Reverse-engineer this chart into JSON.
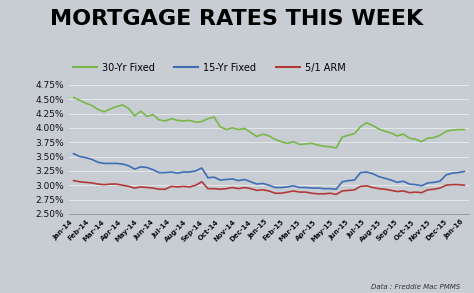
{
  "title": "MORTGAGE RATES THIS WEEK",
  "title_fontsize": 16,
  "title_fontweight": "bold",
  "source_text": "Data : Freddie Mac PMMS",
  "x_labels": [
    "Jan-14",
    "Feb-14",
    "Mar-14",
    "Apr-14",
    "May-14",
    "Jun-14",
    "Jul-14",
    "Aug-14",
    "Sep-14",
    "Oct-14",
    "Nov-14",
    "Dec-14",
    "Jan-15",
    "Feb-15",
    "Mar-15",
    "Apr-15",
    "May-15",
    "Jun-15",
    "Jul-15",
    "Aug-15",
    "Sep-15",
    "Oct-15",
    "Nov-15",
    "Dec-15",
    "Jan-16"
  ],
  "ylim": [
    2.5,
    4.85
  ],
  "yticks": [
    2.5,
    2.75,
    3.0,
    3.25,
    3.5,
    3.75,
    4.0,
    4.25,
    4.5,
    4.75
  ],
  "line_30yr": [
    4.53,
    4.48,
    4.43,
    4.39,
    4.32,
    4.28,
    4.33,
    4.37,
    4.4,
    4.34,
    4.21,
    4.29,
    4.2,
    4.23,
    4.14,
    4.12,
    4.16,
    4.13,
    4.12,
    4.13,
    4.1,
    4.11,
    4.16,
    4.19,
    4.02,
    3.97,
    4.0,
    3.97,
    3.99,
    3.92,
    3.85,
    3.89,
    3.86,
    3.8,
    3.76,
    3.73,
    3.76,
    3.71,
    3.72,
    3.73,
    3.7,
    3.68,
    3.67,
    3.65,
    3.84,
    3.87,
    3.9,
    4.02,
    4.09,
    4.04,
    3.98,
    3.94,
    3.91,
    3.86,
    3.89,
    3.82,
    3.8,
    3.76,
    3.82,
    3.83,
    3.87,
    3.94,
    3.96,
    3.97,
    3.97
  ],
  "line_15yr": [
    3.55,
    3.5,
    3.48,
    3.45,
    3.4,
    3.38,
    3.38,
    3.38,
    3.37,
    3.34,
    3.28,
    3.32,
    3.31,
    3.27,
    3.22,
    3.22,
    3.23,
    3.21,
    3.23,
    3.23,
    3.25,
    3.3,
    3.13,
    3.14,
    3.09,
    3.1,
    3.11,
    3.08,
    3.1,
    3.06,
    3.02,
    3.03,
    3.0,
    2.96,
    2.96,
    2.97,
    2.99,
    2.96,
    2.96,
    2.95,
    2.95,
    2.94,
    2.94,
    2.93,
    3.06,
    3.08,
    3.09,
    3.22,
    3.23,
    3.2,
    3.15,
    3.12,
    3.09,
    3.05,
    3.07,
    3.02,
    3.01,
    2.99,
    3.04,
    3.05,
    3.07,
    3.18,
    3.21,
    3.22,
    3.24
  ],
  "line_arm": [
    3.08,
    3.06,
    3.05,
    3.04,
    3.02,
    3.01,
    3.02,
    3.02,
    3.0,
    2.98,
    2.95,
    2.97,
    2.96,
    2.95,
    2.93,
    2.93,
    2.98,
    2.97,
    2.98,
    2.97,
    3.0,
    3.06,
    2.94,
    2.94,
    2.93,
    2.94,
    2.96,
    2.94,
    2.96,
    2.94,
    2.91,
    2.92,
    2.9,
    2.86,
    2.86,
    2.88,
    2.9,
    2.88,
    2.88,
    2.86,
    2.85,
    2.85,
    2.86,
    2.84,
    2.9,
    2.91,
    2.92,
    2.98,
    2.99,
    2.96,
    2.94,
    2.93,
    2.91,
    2.89,
    2.9,
    2.87,
    2.88,
    2.87,
    2.92,
    2.93,
    2.95,
    3.0,
    3.01,
    3.01,
    3.0
  ],
  "color_30yr": "#7ab648",
  "color_15yr": "#3e6db5",
  "color_arm": "#b03a3a",
  "legend_labels": [
    "30-Yr Fixed",
    "15-Yr Fixed",
    "5/1 ARM"
  ],
  "bg_color": "#c8cdd4",
  "plot_bg": "none",
  "tick_label_color": "#111111",
  "spine_color": "#888888"
}
